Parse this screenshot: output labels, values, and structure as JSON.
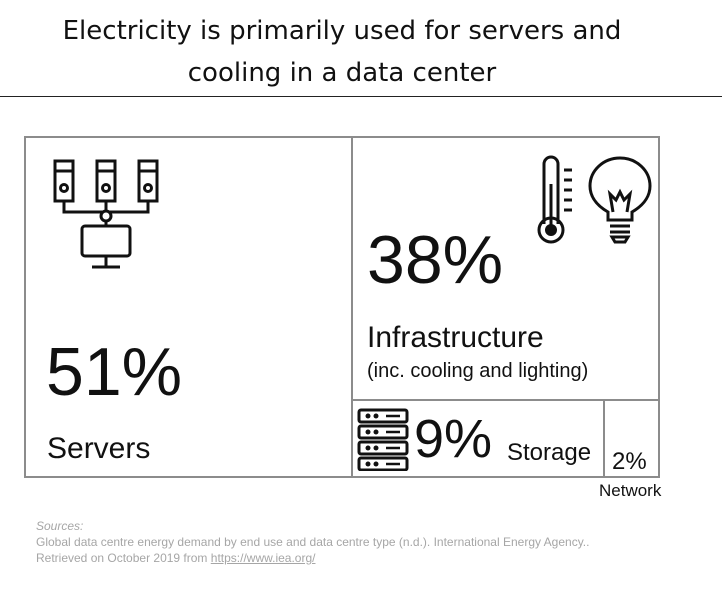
{
  "title_line1": "Electricity is primarily used for servers and",
  "title_line2": "cooling in a data center",
  "chart_data": {
    "type": "treemap",
    "segments": [
      {
        "category": "Servers",
        "value": 51,
        "value_label": "51%",
        "sublabel": "",
        "icon": "server-rack-network-icon"
      },
      {
        "category": "Infrastructure",
        "value": 38,
        "value_label": "38%",
        "sublabel": "(inc. cooling and lighting)",
        "icons": [
          "thermometer-icon",
          "lightbulb-icon"
        ]
      },
      {
        "category": "Storage",
        "value": 9,
        "value_label": "9%",
        "sublabel": "",
        "icon": "storage-drive-icon"
      },
      {
        "category": "Network",
        "value": 2,
        "value_label": "2%",
        "sublabel": "",
        "icon": ""
      }
    ]
  },
  "sources": {
    "heading": "Sources:",
    "citation": "Global data centre energy demand by end use and data centre type (n.d.). International Energy Agency..",
    "retrieved": "Retrieved on October 2019 from ",
    "link": "https://www.iea.org/"
  },
  "colors": {
    "border": "#8c8c8c",
    "text": "#111111",
    "source_text": "#a6a6a6"
  }
}
